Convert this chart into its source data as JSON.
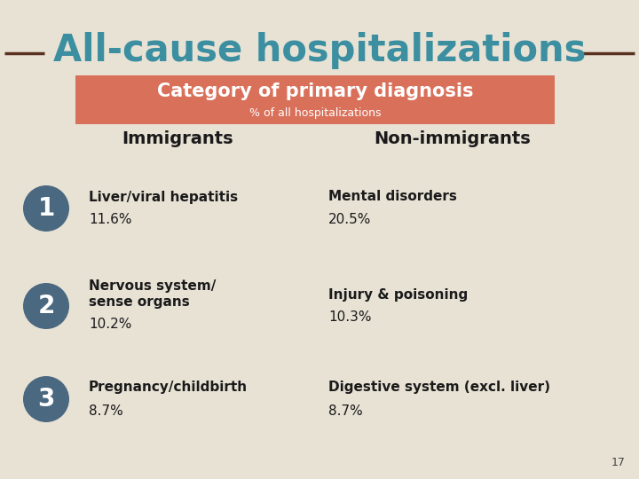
{
  "title": "All-cause hospitalizations",
  "title_color": "#3b8fa0",
  "background_color": "#e8e2d5",
  "header_box_color": "#d9705a",
  "header_title": "Category of primary diagnosis",
  "header_subtitle": "% of all hospitalizations",
  "col_headers": [
    "Immigrants",
    "Non-immigrants"
  ],
  "circle_color": "#4a6880",
  "rows": [
    {
      "number": "1",
      "immigrant_label": "Liver/viral hepatitis",
      "immigrant_value": "11.6%",
      "non_immigrant_label": "Mental disorders",
      "non_immigrant_value": "20.5%",
      "multiline": false
    },
    {
      "number": "2",
      "immigrant_label_line1": "Nervous system/",
      "immigrant_label_line2": "sense organs",
      "immigrant_value": "10.2%",
      "non_immigrant_label": "Injury & poisoning",
      "non_immigrant_value": "10.3%",
      "multiline": true
    },
    {
      "number": "3",
      "immigrant_label": "Pregnancy/childbirth",
      "immigrant_value": "8.7%",
      "non_immigrant_label": "Digestive system (excl. liver)",
      "non_immigrant_value": "8.7%",
      "multiline": false
    }
  ],
  "page_number": "17",
  "line_color": "#5a3020"
}
